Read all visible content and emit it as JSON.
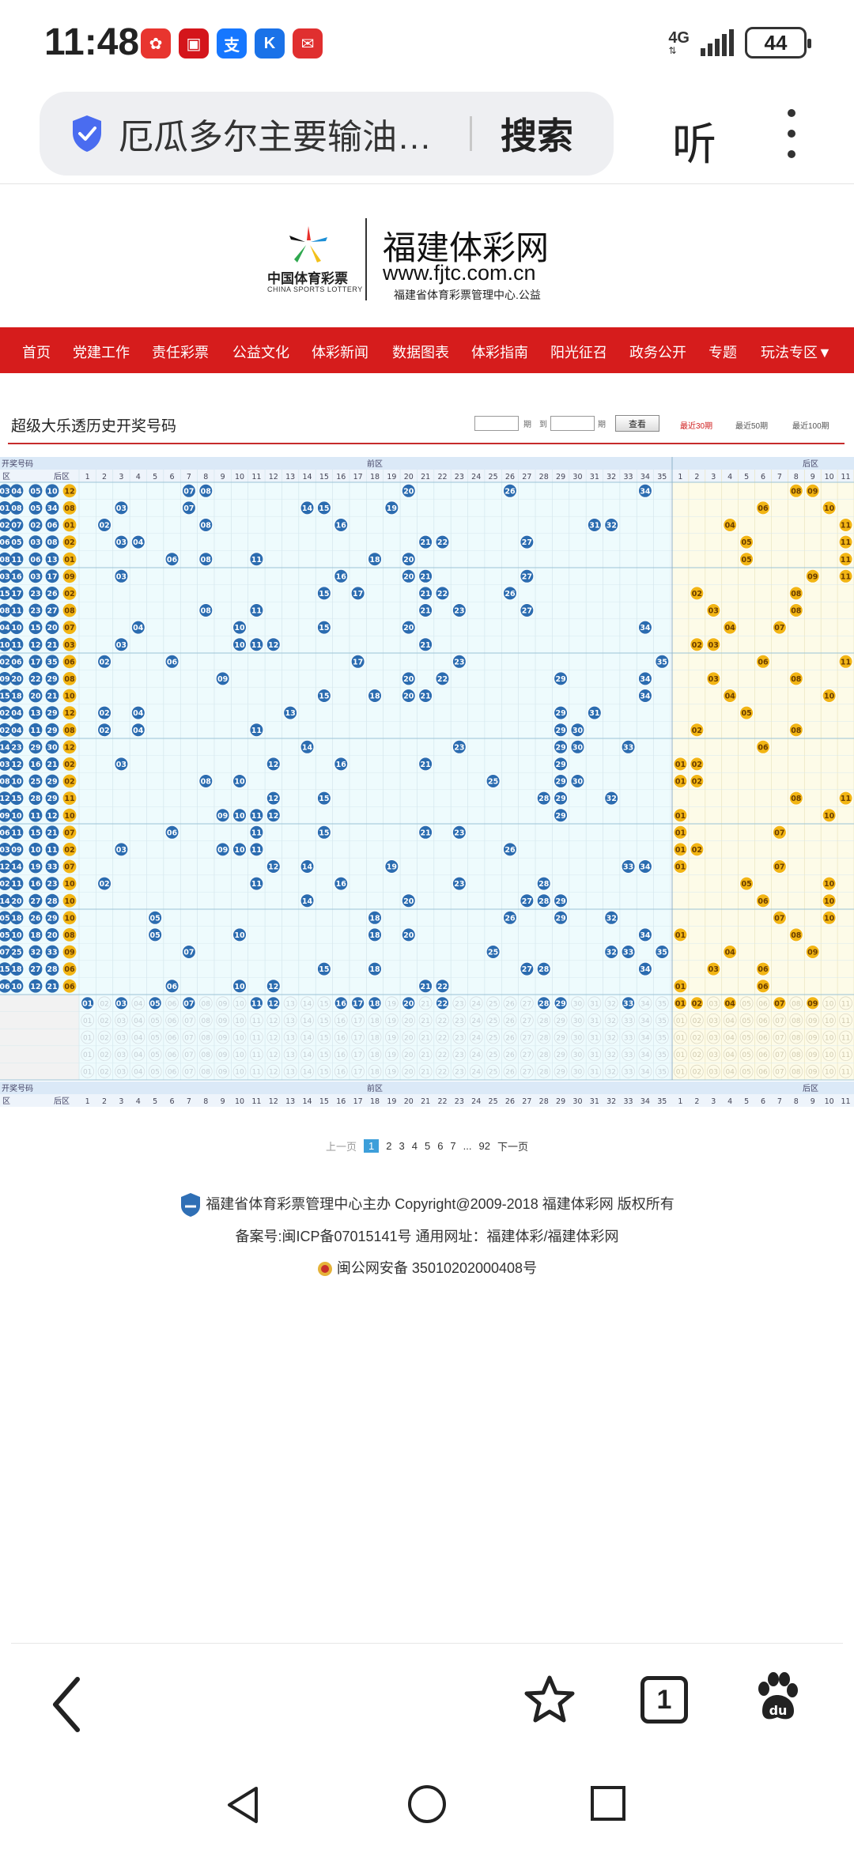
{
  "status_bar": {
    "time": "11:48",
    "network": "4G",
    "battery": "44",
    "app_icons": [
      {
        "name": "huawei-app-icon",
        "color": "#e8352f",
        "glyph": "✿"
      },
      {
        "name": "news-app-icon",
        "color": "#d4151b",
        "glyph": "▣"
      },
      {
        "name": "alipay-app-icon",
        "color": "#1677ff",
        "glyph": "支"
      },
      {
        "name": "k-app-icon",
        "color": "#1a72e8",
        "glyph": "K"
      },
      {
        "name": "message-app-icon",
        "color": "#e02f2f",
        "glyph": "✉"
      }
    ]
  },
  "browser": {
    "address_text": "厄瓜多尔主要输油…",
    "search_label": "搜索",
    "listen_label": "听"
  },
  "site": {
    "logo_cn": "中国体育彩票",
    "logo_en": "CHINA SPORTS LOTTERY",
    "name": "福建体彩网",
    "url": "www.fjtc.com.cn",
    "sub": "福建省体育彩票管理中心.公益",
    "nav": [
      "首页",
      "党建工作",
      "责任彩票",
      "公益文化",
      "体彩新闻",
      "数据图表",
      "体彩指南",
      "阳光征召",
      "政务公开",
      "专题",
      "玩法专区▼"
    ]
  },
  "query": {
    "title": "超级大乐透历史开奖号码",
    "period_label": "期",
    "to_label": "到",
    "query_button": "查看",
    "period_tabs": [
      "最近30期",
      "最近50期",
      "最近100期"
    ]
  },
  "table": {
    "header_group": {
      "open_numbers": "开奖号码",
      "front": "前区",
      "back": "后区"
    },
    "header_sub": {
      "front_short": "区",
      "back_short": "后区"
    },
    "front_count": 35,
    "back_count": 12,
    "draws": [
      {
        "front": [
          7,
          8,
          20,
          26,
          34
        ],
        "back": [
          8,
          9
        ]
      },
      {
        "front": [
          3,
          7,
          14,
          15,
          19
        ],
        "back": [
          6,
          10
        ]
      },
      {
        "front": [
          2,
          8,
          16,
          31,
          32
        ],
        "back": [
          4,
          11
        ]
      },
      {
        "front": [
          3,
          4,
          21,
          22,
          27
        ],
        "back": [
          5,
          11
        ]
      },
      {
        "front": [
          6,
          8,
          11,
          18,
          20
        ],
        "back": [
          5,
          11
        ]
      },
      {
        "front": [
          3,
          16,
          20,
          21,
          27
        ],
        "back": [
          9,
          11
        ]
      },
      {
        "front": [
          15,
          17,
          21,
          22,
          26
        ],
        "back": [
          2,
          8
        ]
      },
      {
        "front": [
          8,
          11,
          21,
          23,
          27
        ],
        "back": [
          3,
          8
        ]
      },
      {
        "front": [
          4,
          10,
          15,
          20,
          34
        ],
        "back": [
          4,
          7
        ]
      },
      {
        "front": [
          3,
          10,
          11,
          12,
          21
        ],
        "back": [
          2,
          3
        ]
      },
      {
        "front": [
          2,
          6,
          17,
          23,
          35
        ],
        "back": [
          6,
          11
        ]
      },
      {
        "front": [
          9,
          20,
          22,
          29,
          34
        ],
        "back": [
          3,
          8
        ]
      },
      {
        "front": [
          15,
          18,
          20,
          21,
          34
        ],
        "back": [
          4,
          10
        ]
      },
      {
        "front": [
          2,
          4,
          13,
          29,
          31
        ],
        "back": [
          5,
          12
        ]
      },
      {
        "front": [
          2,
          4,
          11,
          29,
          30
        ],
        "back": [
          2,
          8
        ]
      },
      {
        "front": [
          14,
          23,
          29,
          30,
          33
        ],
        "back": [
          6,
          12
        ]
      },
      {
        "front": [
          3,
          12,
          16,
          21,
          29
        ],
        "back": [
          1,
          2
        ]
      },
      {
        "front": [
          8,
          10,
          25,
          29,
          30
        ],
        "back": [
          1,
          2
        ]
      },
      {
        "front": [
          12,
          15,
          28,
          29,
          32
        ],
        "back": [
          8,
          11
        ]
      },
      {
        "front": [
          9,
          10,
          11,
          12,
          29
        ],
        "back": [
          1,
          10
        ]
      },
      {
        "front": [
          6,
          11,
          15,
          21,
          23
        ],
        "back": [
          1,
          7
        ]
      },
      {
        "front": [
          3,
          9,
          10,
          11,
          26
        ],
        "back": [
          1,
          2
        ]
      },
      {
        "front": [
          12,
          14,
          19,
          33,
          34
        ],
        "back": [
          1,
          7
        ]
      },
      {
        "front": [
          2,
          11,
          16,
          23,
          28
        ],
        "back": [
          5,
          10
        ]
      },
      {
        "front": [
          14,
          20,
          27,
          28,
          29
        ],
        "back": [
          6,
          10
        ]
      },
      {
        "front": [
          5,
          18,
          26,
          29,
          32
        ],
        "back": [
          7,
          10
        ]
      },
      {
        "front": [
          5,
          10,
          18,
          20,
          34
        ],
        "back": [
          1,
          8
        ]
      },
      {
        "front": [
          7,
          25,
          32,
          33,
          35
        ],
        "back": [
          4,
          9
        ]
      },
      {
        "front": [
          15,
          18,
          27,
          28,
          34
        ],
        "back": [
          3,
          6
        ]
      },
      {
        "front": [
          6,
          10,
          12,
          21,
          22
        ],
        "back": [
          1,
          6
        ]
      }
    ],
    "left_numbers": [
      [
        "03",
        "04",
        "05",
        "10",
        "12"
      ],
      [
        "01",
        "08",
        "05",
        "34",
        "08"
      ],
      [
        "02",
        "07",
        "02",
        "06",
        "01"
      ],
      [
        "06",
        "05",
        "03",
        "08",
        "02"
      ],
      [
        "08",
        "11",
        "06",
        "13",
        "01"
      ],
      [
        "03",
        "16",
        "03",
        "17",
        "09"
      ],
      [
        "15",
        "17",
        "23",
        "26",
        "02"
      ],
      [
        "08",
        "11",
        "23",
        "27",
        "08"
      ],
      [
        "04",
        "10",
        "15",
        "20",
        "07"
      ],
      [
        "10",
        "11",
        "12",
        "21",
        "03"
      ],
      [
        "02",
        "06",
        "17",
        "35",
        "06"
      ],
      [
        "09",
        "20",
        "22",
        "29",
        "08"
      ],
      [
        "15",
        "18",
        "20",
        "21",
        "10"
      ],
      [
        "02",
        "04",
        "13",
        "29",
        "12"
      ],
      [
        "02",
        "04",
        "11",
        "29",
        "08"
      ],
      [
        "14",
        "23",
        "29",
        "30",
        "12"
      ],
      [
        "03",
        "12",
        "16",
        "21",
        "02"
      ],
      [
        "08",
        "10",
        "25",
        "29",
        "02"
      ],
      [
        "12",
        "15",
        "28",
        "29",
        "11"
      ],
      [
        "09",
        "10",
        "11",
        "12",
        "10"
      ],
      [
        "06",
        "11",
        "15",
        "21",
        "07"
      ],
      [
        "03",
        "09",
        "10",
        "11",
        "02"
      ],
      [
        "12",
        "14",
        "19",
        "33",
        "07"
      ],
      [
        "02",
        "11",
        "16",
        "23",
        "10"
      ],
      [
        "14",
        "20",
        "27",
        "28",
        "10"
      ],
      [
        "05",
        "18",
        "26",
        "29",
        "10"
      ],
      [
        "05",
        "10",
        "18",
        "20",
        "08"
      ],
      [
        "07",
        "25",
        "32",
        "33",
        "09"
      ],
      [
        "15",
        "18",
        "27",
        "28",
        "06"
      ],
      [
        "06",
        "10",
        "12",
        "21",
        "06"
      ]
    ],
    "summary_front": [
      1,
      3,
      5,
      7,
      11,
      12,
      16,
      17,
      18,
      20,
      22,
      28,
      29,
      33
    ],
    "summary_back": [
      1,
      2,
      4,
      7,
      9
    ]
  },
  "pagination": {
    "prev": "上一页",
    "pages": [
      "1",
      "2",
      "3",
      "4",
      "5",
      "6",
      "7",
      "...",
      "92"
    ],
    "next": "下一页"
  },
  "footer": {
    "line1": "福建省体育彩票管理中心主办 Copyright@2009-2018 福建体彩网 版权所有",
    "line2": "备案号:闽ICP备07015141号    通用网址：福建体彩/福建体彩网",
    "line3": "闽公网安备 35010202000408号"
  },
  "bottom_nav": {
    "tab_count": "1"
  },
  "colors": {
    "nav_red": "#d61c1c",
    "ball_blue": "#2b6cb0",
    "ball_yellow": "#f2b514",
    "front_bg": "#eefbfd",
    "back_bg": "#fdfbe8",
    "header_bg": "#dbe9f7"
  }
}
